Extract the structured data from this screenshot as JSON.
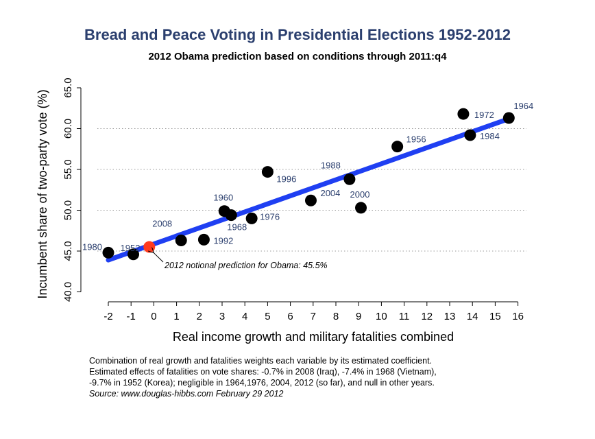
{
  "title": "Bread and Peace Voting in Presidential Elections 1952-2012",
  "subtitle": "2012 Obama prediction based on conditions through 2011:q4",
  "notes": [
    "Combination of real growth and fatalities weights each variable by its estimated coefficient.",
    "Estimated effects of fatalities on vote shares: -0.7% in 2008 (Iraq), -7.4% in 1968 (Vietnam),",
    "-9.7% in 1952 (Korea); negligible in 1964,1976, 2004, 2012 (so far), and null in other years."
  ],
  "source": "Source: www.douglas-hibbs.com February 29 2012",
  "chart_data": {
    "type": "scatter",
    "title": "Bread and Peace Voting in Presidential Elections 1952-2012",
    "subtitle": "2012 Obama prediction based on conditions through 2011:q4",
    "xlabel": "Real income growth and military fatalities combined",
    "ylabel": "Incumbent share of two-party vote (%)",
    "xlim": [
      -2.5,
      16.5
    ],
    "ylim": [
      40.0,
      66.0
    ],
    "xticks": [
      "-2",
      "-1",
      "0",
      "1",
      "2",
      "3",
      "4",
      "5",
      "6",
      "7",
      "8",
      "9",
      "10",
      "11",
      "12",
      "13",
      "14",
      "15",
      "16"
    ],
    "yticks": [
      "40.0",
      "45.0",
      "50.0",
      "55.0",
      "60.0",
      "65.0"
    ],
    "grid": "horizontal dotted",
    "points": [
      {
        "label": "1980",
        "x": -2.0,
        "y": 44.8
      },
      {
        "label": "1952",
        "x": -0.9,
        "y": 44.6
      },
      {
        "label": "2008",
        "x": 1.2,
        "y": 46.3
      },
      {
        "label": "1992",
        "x": 2.2,
        "y": 46.4
      },
      {
        "label": "1960",
        "x": 3.1,
        "y": 49.9
      },
      {
        "label": "1968",
        "x": 3.4,
        "y": 49.4
      },
      {
        "label": "1976",
        "x": 4.3,
        "y": 49.0
      },
      {
        "label": "1996",
        "x": 5.0,
        "y": 54.7
      },
      {
        "label": "2004",
        "x": 6.9,
        "y": 51.2
      },
      {
        "label": "1988",
        "x": 8.6,
        "y": 53.8
      },
      {
        "label": "2000",
        "x": 9.1,
        "y": 50.3
      },
      {
        "label": "1956",
        "x": 10.7,
        "y": 57.8
      },
      {
        "label": "1972",
        "x": 13.6,
        "y": 61.8
      },
      {
        "label": "1984",
        "x": 13.9,
        "y": 59.2
      },
      {
        "label": "1964",
        "x": 15.6,
        "y": 61.3
      }
    ],
    "fit_line": {
      "x": [
        -2.0,
        15.6
      ],
      "y": [
        43.9,
        61.2
      ],
      "color": "#1f3ff2"
    },
    "prediction": {
      "x": -0.2,
      "y": 45.5,
      "color": "#ff3b1f",
      "annotation": "2012 notional prediction for Obama: 45.5%"
    },
    "point_color": "#000000",
    "label_color": "#2b3f6e"
  }
}
